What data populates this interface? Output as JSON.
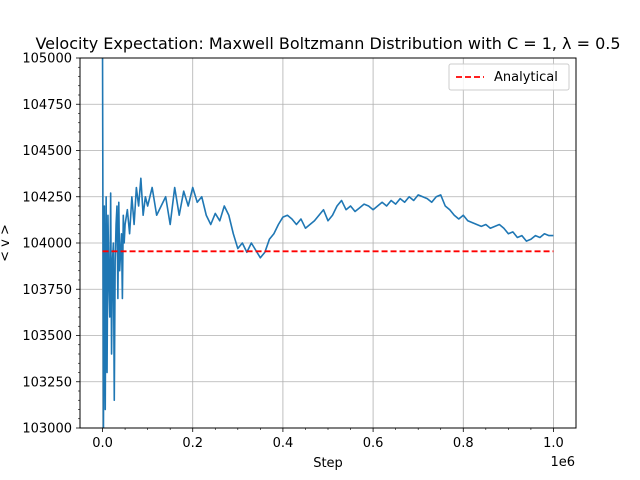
{
  "chart_data": {
    "type": "line",
    "title": "Velocity Expectation: Maxwell Boltzmann Distribution with C = 1, λ = 0.5",
    "xlabel": "Step",
    "ylabel": "< v >",
    "x_offset_label": "1e6",
    "xlim": [
      -50000,
      1050000
    ],
    "ylim": [
      103000,
      105000
    ],
    "x_ticks": [
      0,
      200000,
      400000,
      600000,
      800000,
      1000000
    ],
    "x_tick_labels": [
      "0.0",
      "0.2",
      "0.4",
      "0.6",
      "0.8",
      "1.0"
    ],
    "y_ticks": [
      103000,
      103250,
      103500,
      103750,
      104000,
      104250,
      104500,
      104750,
      105000
    ],
    "y_tick_labels": [
      "103000",
      "103250",
      "103500",
      "103750",
      "104000",
      "104250",
      "104500",
      "104750",
      "105000"
    ],
    "grid": true,
    "legend_position": "top-right",
    "series": [
      {
        "color": "#1f77b4",
        "style": "solid",
        "x": [
          0,
          2000,
          4000,
          6000,
          8000,
          10000,
          12000,
          14000,
          16000,
          18000,
          20000,
          22000,
          24000,
          26000,
          28000,
          30000,
          32000,
          34000,
          36000,
          38000,
          40000,
          42000,
          44000,
          46000,
          48000,
          50000,
          55000,
          60000,
          65000,
          70000,
          75000,
          80000,
          85000,
          90000,
          95000,
          100000,
          110000,
          120000,
          130000,
          140000,
          150000,
          160000,
          170000,
          180000,
          190000,
          200000,
          210000,
          220000,
          230000,
          240000,
          250000,
          260000,
          270000,
          280000,
          290000,
          300000,
          310000,
          320000,
          330000,
          340000,
          350000,
          360000,
          370000,
          380000,
          390000,
          400000,
          410000,
          420000,
          430000,
          440000,
          450000,
          460000,
          470000,
          480000,
          490000,
          500000,
          510000,
          520000,
          530000,
          540000,
          550000,
          560000,
          570000,
          580000,
          590000,
          600000,
          610000,
          620000,
          630000,
          640000,
          650000,
          660000,
          670000,
          680000,
          690000,
          700000,
          710000,
          720000,
          730000,
          740000,
          750000,
          760000,
          770000,
          780000,
          790000,
          800000,
          810000,
          820000,
          830000,
          840000,
          850000,
          860000,
          870000,
          880000,
          890000,
          900000,
          910000,
          920000,
          930000,
          940000,
          950000,
          960000,
          970000,
          980000,
          990000,
          1000000
        ],
        "y": [
          105000,
          103000,
          104200,
          103100,
          104250,
          103300,
          104150,
          103800,
          103600,
          104270,
          103400,
          103900,
          104000,
          103150,
          103900,
          104100,
          104200,
          103700,
          104220,
          103850,
          103950,
          104050,
          103700,
          104150,
          104000,
          104100,
          104180,
          104050,
          104250,
          104100,
          104300,
          104200,
          104350,
          104150,
          104250,
          104200,
          104300,
          104150,
          104200,
          104250,
          104100,
          104300,
          104150,
          104280,
          104200,
          104300,
          104220,
          104250,
          104150,
          104100,
          104160,
          104120,
          104200,
          104150,
          104050,
          103970,
          104000,
          103950,
          104000,
          103960,
          103920,
          103950,
          104020,
          104050,
          104100,
          104140,
          104150,
          104130,
          104100,
          104130,
          104080,
          104100,
          104120,
          104150,
          104180,
          104120,
          104150,
          104200,
          104230,
          104180,
          104200,
          104170,
          104190,
          104210,
          104200,
          104180,
          104200,
          104220,
          104200,
          104230,
          104210,
          104240,
          104220,
          104250,
          104230,
          104260,
          104250,
          104240,
          104220,
          104250,
          104260,
          104200,
          104180,
          104150,
          104130,
          104150,
          104120,
          104110,
          104100,
          104090,
          104100,
          104080,
          104090,
          104100,
          104080,
          104050,
          104060,
          104030,
          104040,
          104010,
          104020,
          104040,
          104030,
          104050,
          104040,
          104040
        ]
      },
      {
        "name": "Analytical",
        "color": "#ff0000",
        "style": "dashed",
        "x": [
          0,
          1000000
        ],
        "y": [
          103955,
          103955
        ]
      }
    ]
  }
}
